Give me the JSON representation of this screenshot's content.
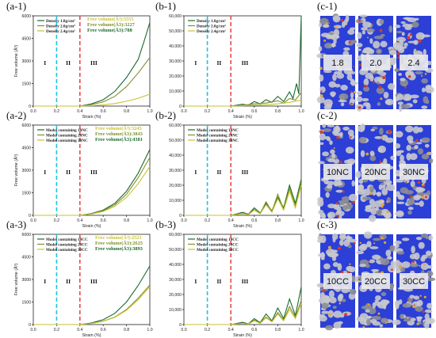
{
  "colors": {
    "s1": "#1b6b2e",
    "s2": "#7f8f2a",
    "s3": "#c7c331",
    "cyan": "#1ec4df",
    "red": "#e8494c"
  },
  "panel_labels": [
    "(a-1)",
    "(b-1)",
    "(c-1)",
    "(a-2)",
    "(b-2)",
    "(c-2)",
    "(a-3)",
    "(b-3)",
    "(c-3)"
  ],
  "region_labels": [
    "I",
    "II",
    "III"
  ],
  "image_panels": [
    {
      "labels": [
        "1.8",
        "2.0",
        "2.4"
      ]
    },
    {
      "labels": [
        "10NC",
        "20NC",
        "30NC"
      ]
    },
    {
      "labels": [
        "10CC",
        "20CC",
        "30CC"
      ]
    }
  ],
  "chart_data": [
    {
      "id": "a-1",
      "type": "line",
      "xlabel": "Strain (%)",
      "ylabel": "Free volume (Å³)",
      "xlim": [
        0,
        1.0
      ],
      "ylim": [
        0,
        6000
      ],
      "xticks": [
        "0.0",
        "0.2",
        "0.4",
        "0.6",
        "0.8",
        "1.0"
      ],
      "yticks": [
        "0",
        "1500",
        "3000",
        "4500",
        "6000"
      ],
      "vlines": [
        0.2,
        0.4
      ],
      "annotations": [
        "Free volume(Å³):5555",
        "Free volume(Å3):3227",
        "Free volume(Å3):788"
      ],
      "series": [
        {
          "name": "Density 1.8g/cm³",
          "x": [
            0.4,
            0.5,
            0.6,
            0.7,
            0.8,
            0.9,
            0.95,
            1.0
          ],
          "y": [
            0,
            150,
            420,
            980,
            1900,
            3100,
            4300,
            5555
          ]
        },
        {
          "name": "Density 2.0g/cm³",
          "x": [
            0.4,
            0.5,
            0.6,
            0.7,
            0.8,
            0.9,
            1.0
          ],
          "y": [
            0,
            100,
            280,
            650,
            1300,
            2200,
            3227
          ]
        },
        {
          "name": "Density 2.4g/cm³",
          "x": [
            0.4,
            0.5,
            0.6,
            0.7,
            0.8,
            0.9,
            1.0
          ],
          "y": [
            0,
            30,
            80,
            170,
            320,
            520,
            788
          ]
        }
      ]
    },
    {
      "id": "b-1",
      "type": "line",
      "xlabel": "Strain (%)",
      "ylabel": "",
      "xlim": [
        0,
        1.0
      ],
      "ylim": [
        0,
        60000
      ],
      "xticks": [
        "0.0",
        "0.2",
        "0.4",
        "0.6",
        "0.8",
        "1.0"
      ],
      "yticks": [
        "0",
        "10,000",
        "20,000",
        "30,000",
        "40,000",
        "50,000",
        "60,000"
      ],
      "vlines": [
        0.2,
        0.4
      ],
      "series": [
        {
          "name": "Density 1.8g/cm³",
          "x": [
            0.4,
            0.5,
            0.55,
            0.6,
            0.65,
            0.7,
            0.75,
            0.8,
            0.85,
            0.9,
            0.93,
            0.96,
            0.98,
            1.0
          ],
          "y": [
            0,
            1200,
            600,
            3000,
            1500,
            4200,
            2500,
            6500,
            3000,
            9500,
            5000,
            15000,
            8000,
            60000
          ]
        },
        {
          "name": "Density 2.0g/cm³",
          "x": [
            0.4,
            0.5,
            0.6,
            0.7,
            0.8,
            0.85,
            0.9,
            0.95,
            1.0
          ],
          "y": [
            0,
            500,
            1500,
            2000,
            3500,
            2000,
            5000,
            4000,
            9000
          ]
        },
        {
          "name": "Density 2.4g/cm³",
          "x": [
            0.4,
            0.5,
            0.6,
            0.7,
            0.8,
            0.9,
            1.0
          ],
          "y": [
            0,
            200,
            600,
            900,
            1500,
            2500,
            4000
          ]
        }
      ]
    },
    {
      "id": "a-2",
      "type": "line",
      "xlabel": "Strain (%)",
      "ylabel": "Free volume (Å³)",
      "xlim": [
        0,
        1.0
      ],
      "ylim": [
        0,
        6000
      ],
      "xticks": [
        "0.0",
        "0.2",
        "0.4",
        "0.6",
        "0.8",
        "1.0"
      ],
      "yticks": [
        "0",
        "1500",
        "3000",
        "4500",
        "6000"
      ],
      "vlines": [
        0.2,
        0.4
      ],
      "annotations": [
        "Free volume(Å³):3245",
        "Free volume(Å3):3843",
        "Free volume(Å3):4381"
      ],
      "series": [
        {
          "name": "Model containing 10NC",
          "x": [
            0.4,
            0.5,
            0.6,
            0.7,
            0.8,
            0.9,
            1.0
          ],
          "y": [
            0,
            120,
            350,
            800,
            1600,
            2800,
            4381
          ]
        },
        {
          "name": "Model containing 20NC",
          "x": [
            0.4,
            0.5,
            0.6,
            0.7,
            0.8,
            0.9,
            1.0
          ],
          "y": [
            0,
            100,
            300,
            700,
            1400,
            2500,
            3843
          ]
        },
        {
          "name": "Model containing 30NC",
          "x": [
            0.4,
            0.5,
            0.6,
            0.7,
            0.8,
            0.9,
            1.0
          ],
          "y": [
            0,
            90,
            260,
            600,
            1200,
            2100,
            3245
          ]
        }
      ]
    },
    {
      "id": "b-2",
      "type": "line",
      "xlabel": "Strain (%)",
      "ylabel": "",
      "xlim": [
        0,
        1.0
      ],
      "ylim": [
        0,
        60000
      ],
      "xticks": [
        "0.0",
        "0.2",
        "0.4",
        "0.6",
        "0.8",
        "1.0"
      ],
      "yticks": [
        "0",
        "10,000",
        "20,000",
        "30,000",
        "40,000",
        "50,000",
        "60,000"
      ],
      "vlines": [
        0.2,
        0.4
      ],
      "series": [
        {
          "name": "Model containing 10NC",
          "x": [
            0.4,
            0.5,
            0.55,
            0.6,
            0.65,
            0.7,
            0.75,
            0.8,
            0.85,
            0.9,
            0.95,
            1.0
          ],
          "y": [
            0,
            2000,
            800,
            5000,
            1500,
            8000,
            3000,
            12000,
            5000,
            20000,
            8000,
            24000
          ]
        },
        {
          "name": "Model containing 20NC",
          "x": [
            0.4,
            0.5,
            0.55,
            0.6,
            0.65,
            0.7,
            0.75,
            0.8,
            0.85,
            0.9,
            0.95,
            1.0
          ],
          "y": [
            0,
            1500,
            600,
            4000,
            1200,
            9000,
            2500,
            14000,
            4000,
            18000,
            6000,
            22000
          ]
        },
        {
          "name": "Model containing 30NC",
          "x": [
            0.4,
            0.5,
            0.55,
            0.6,
            0.65,
            0.7,
            0.75,
            0.8,
            0.85,
            0.9,
            0.95,
            1.0
          ],
          "y": [
            0,
            1000,
            500,
            3500,
            1000,
            7000,
            2000,
            11000,
            3500,
            16000,
            5000,
            20000
          ]
        }
      ]
    },
    {
      "id": "a-3",
      "type": "line",
      "xlabel": "Strain (%)",
      "ylabel": "Free volume (Å³)",
      "xlim": [
        0,
        1.0
      ],
      "ylim": [
        0,
        6000
      ],
      "xticks": [
        "0.0",
        "0.2",
        "0.4",
        "0.6",
        "0.8",
        "1.0"
      ],
      "yticks": [
        "0",
        "1500",
        "3000",
        "4500",
        "6000"
      ],
      "vlines": [
        0.2,
        0.4
      ],
      "annotations": [
        "Free volume(Å³):2521",
        "Free volume(Å3):2625",
        "Free volume(Å3):3893"
      ],
      "series": [
        {
          "name": "Model containing 10CC",
          "x": [
            0.4,
            0.5,
            0.6,
            0.7,
            0.8,
            0.9,
            1.0
          ],
          "y": [
            0,
            110,
            320,
            750,
            1500,
            2600,
            3893
          ]
        },
        {
          "name": "Model containing 20CC",
          "x": [
            0.4,
            0.5,
            0.6,
            0.7,
            0.8,
            0.9,
            1.0
          ],
          "y": [
            0,
            80,
            220,
            500,
            1000,
            1750,
            2625
          ]
        },
        {
          "name": "Model containing 30CC",
          "x": [
            0.4,
            0.5,
            0.6,
            0.7,
            0.8,
            0.9,
            1.0
          ],
          "y": [
            0,
            75,
            210,
            480,
            950,
            1650,
            2521
          ]
        }
      ]
    },
    {
      "id": "b-3",
      "type": "line",
      "xlabel": "Strain (%)",
      "ylabel": "",
      "xlim": [
        0,
        1.0
      ],
      "ylim": [
        0,
        60000
      ],
      "xticks": [
        "0.0",
        "0.2",
        "0.4",
        "0.6",
        "0.8",
        "1.0"
      ],
      "yticks": [
        "0",
        "10,000",
        "20,000",
        "30,000",
        "40,000",
        "50,000",
        "60,000"
      ],
      "vlines": [
        0.2,
        0.4
      ],
      "series": [
        {
          "name": "Model containing 10CC",
          "x": [
            0.4,
            0.5,
            0.55,
            0.6,
            0.65,
            0.7,
            0.75,
            0.8,
            0.85,
            0.9,
            0.95,
            1.0
          ],
          "y": [
            0,
            1500,
            500,
            4000,
            1200,
            7000,
            2500,
            11000,
            4000,
            17000,
            6000,
            25000
          ]
        },
        {
          "name": "Model containing 20CC",
          "x": [
            0.4,
            0.5,
            0.55,
            0.6,
            0.65,
            0.7,
            0.75,
            0.8,
            0.85,
            0.9,
            0.95,
            1.0
          ],
          "y": [
            0,
            1000,
            400,
            3000,
            900,
            5000,
            2000,
            8000,
            3000,
            12000,
            5000,
            16000
          ]
        },
        {
          "name": "Model containing 30CC",
          "x": [
            0.4,
            0.5,
            0.55,
            0.6,
            0.65,
            0.7,
            0.75,
            0.8,
            0.85,
            0.9,
            0.95,
            1.0
          ],
          "y": [
            0,
            800,
            300,
            2500,
            800,
            4500,
            1800,
            7000,
            2500,
            10000,
            4000,
            14000
          ]
        }
      ]
    }
  ]
}
